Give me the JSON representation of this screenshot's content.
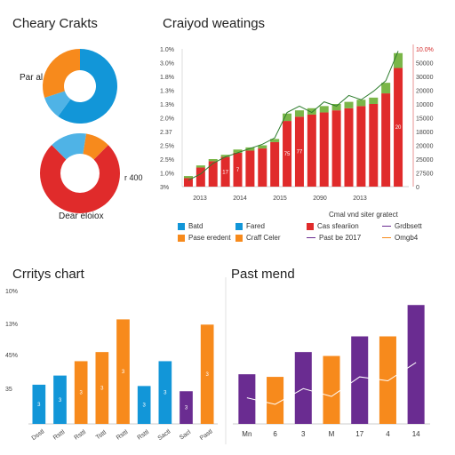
{
  "colors": {
    "blue": "#1296d8",
    "orange": "#f78a1c",
    "red": "#e02b2b",
    "green": "#7ab648",
    "purple": "#6a2c91",
    "lightblue": "#4fb3e6"
  },
  "panels": {
    "top_left_title": "Cheary Crakts",
    "top_right_title": "Craiyod weatings",
    "bottom_left_title": "Crritys chart",
    "bottom_right_title": "Past mend"
  },
  "legend": {
    "title": "Cmal vnd siter gratect",
    "items": [
      {
        "label": "Batd",
        "color": "blue",
        "kind": "box"
      },
      {
        "label": "Fared",
        "color": "blue",
        "kind": "box"
      },
      {
        "label": "Cas sfeariion",
        "color": "red",
        "kind": "box"
      },
      {
        "label": "Grdbsett",
        "color": "purple",
        "kind": "line"
      },
      {
        "label": "Pase eredent",
        "color": "orange",
        "kind": "box"
      },
      {
        "label": "Craff Celer",
        "color": "orange",
        "kind": "box"
      },
      {
        "label": "Past be 2017",
        "color": "purple",
        "kind": "line"
      },
      {
        "label": "Omgb4",
        "color": "orange",
        "kind": "line"
      }
    ]
  },
  "chart_data": [
    {
      "type": "pie",
      "title": "Cheary Crakts",
      "style": "donut",
      "slices": [
        {
          "label": "",
          "value": 60,
          "color": "blue"
        },
        {
          "label": "",
          "value": 10,
          "color": "lightblue"
        },
        {
          "label": "",
          "value": 30,
          "color": "orange"
        }
      ],
      "annotations": [
        "Par al"
      ]
    },
    {
      "type": "pie",
      "title": "",
      "style": "donut",
      "slices": [
        {
          "label": "",
          "value": 75,
          "color": "red"
        },
        {
          "label": "",
          "value": 15,
          "color": "lightblue"
        },
        {
          "label": "",
          "value": 10,
          "color": "orange"
        }
      ],
      "annotations": [
        "Dear eloiox",
        "r 400"
      ]
    },
    {
      "type": "bar",
      "title": "Craiyod weatings",
      "stacked": true,
      "categories": [
        "",
        "",
        "",
        "",
        "",
        "",
        "",
        "",
        "",
        "",
        "",
        "",
        "",
        "",
        "",
        "",
        "",
        ""
      ],
      "series": [
        {
          "color": "red",
          "values": [
            8,
            18,
            24,
            28,
            32,
            34,
            36,
            42,
            62,
            66,
            68,
            70,
            72,
            74,
            76,
            78,
            88,
            112
          ]
        },
        {
          "color": "green",
          "values": [
            2,
            2,
            2,
            2,
            3,
            3,
            3,
            3,
            7,
            6,
            6,
            6,
            6,
            6,
            6,
            6,
            10,
            14
          ]
        }
      ],
      "bar_labels": [
        "",
        "",
        "",
        "17",
        "7",
        "",
        "",
        "",
        "75",
        "77",
        "",
        "",
        "",
        "",
        "",
        "",
        "",
        "20"
      ],
      "line": [
        6,
        12,
        22,
        28,
        32,
        36,
        40,
        46,
        70,
        76,
        70,
        80,
        76,
        86,
        82,
        90,
        100,
        128
      ],
      "x_ticks": [
        "2013",
        "2014",
        "2015",
        "2090",
        "2013"
      ],
      "y_left_ticks": [
        "3%",
        "1.0%",
        "2.5%",
        "2.5%",
        "2.37",
        "2.0%",
        "1.3%",
        "1.3%",
        "1.8%",
        "3.0%",
        "1.0%"
      ],
      "y_right_ticks": [
        "0",
        "27500",
        "25000",
        "20000",
        "18000",
        "15000",
        "10000",
        "20000",
        "30000",
        "50000",
        "10.0%"
      ],
      "ylim": [
        0,
        130
      ],
      "grid": false
    },
    {
      "type": "bar",
      "title": "Crritys chart",
      "categories": [
        "Dsstl",
        "Rsttl",
        "Rsttl",
        "Tsttl",
        "Rsttl",
        "Rsttl",
        "Sactl",
        "Sacl",
        "Pastl"
      ],
      "values": [
        30,
        37,
        48,
        55,
        80,
        29,
        48,
        25,
        76
      ],
      "colors": [
        "blue",
        "blue",
        "orange",
        "orange",
        "orange",
        "blue",
        "blue",
        "purple",
        "orange"
      ],
      "bar_labels": [
        "3",
        "3",
        "3",
        "3",
        "3",
        "3",
        "3",
        "3",
        "3"
      ],
      "y_ticks": [
        "35",
        "45%",
        "13%",
        "10%"
      ],
      "ylim": [
        0,
        100
      ],
      "grid": false
    },
    {
      "type": "bar",
      "title": "Past mend",
      "categories": [
        "Mn",
        "6",
        "3",
        "M",
        "17",
        "4",
        "14"
      ],
      "values": [
        38,
        36,
        55,
        52,
        67,
        67,
        91
      ],
      "colors": [
        "purple",
        "orange",
        "purple",
        "orange",
        "purple",
        "orange",
        "purple"
      ],
      "line": [
        20,
        15,
        27,
        21,
        36,
        33,
        47
      ],
      "ylim": [
        0,
        100
      ],
      "grid": false
    }
  ]
}
